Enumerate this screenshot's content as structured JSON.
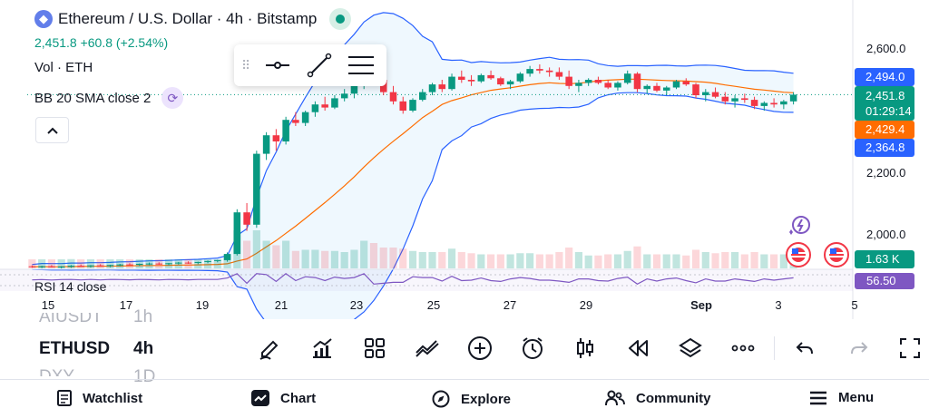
{
  "header": {
    "title": "Ethereum / U.S. Dollar · 4h · Bitstamp",
    "logo_icon": "ethereum-icon",
    "price_change": "2,451.8  +60.8 (+2.54%)",
    "volume_label": "Vol · ETH",
    "bb_label": "BB 20 SMA close 2"
  },
  "colors": {
    "up": "#089981",
    "down": "#f23645",
    "bb_band": "#2962ff",
    "bb_basis": "#ff6d00",
    "rsi": "#7e57c2",
    "accent": "#2962ff"
  },
  "price_axis": {
    "ticks": [
      "2,600.0",
      "2,200.0",
      "2,000.0"
    ],
    "labels": {
      "bb_upper": "2,494.0",
      "last": "2,451.8",
      "countdown": "01:29:14",
      "bb_basis": "2,429.4",
      "bb_lower": "2,364.8"
    },
    "volume_value": "1.63 K",
    "rsi_value": "56.50"
  },
  "time_axis": {
    "ticks": [
      "15",
      "17",
      "19",
      "21",
      "23",
      "25",
      "27",
      "29",
      "Sep",
      "3",
      "5"
    ]
  },
  "rsi": {
    "label": "RSI 14 close"
  },
  "chart_data": {
    "type": "candlestick",
    "title": "Ethereum / U.S. Dollar · 4h · Bitstamp",
    "ylim": [
      1850,
      2650
    ],
    "y_ticks": [
      2000,
      2200,
      2600
    ],
    "last_price": 2451.8,
    "change": 60.8,
    "change_pct": 2.54,
    "bollinger": {
      "upper": 2494.0,
      "basis": 2429.4,
      "lower": 2364.8
    },
    "volume_last": "1.63 K",
    "rsi_last": 56.5,
    "x_ticks": [
      "15",
      "17",
      "19",
      "21",
      "23",
      "25",
      "27",
      "29",
      "Sep",
      "3",
      "5"
    ],
    "candles": [
      [
        1895,
        1898,
        1890,
        1893
      ],
      [
        1893,
        1897,
        1889,
        1895
      ],
      [
        1895,
        1899,
        1891,
        1892
      ],
      [
        1892,
        1896,
        1888,
        1894
      ],
      [
        1894,
        1899,
        1890,
        1897
      ],
      [
        1897,
        1901,
        1893,
        1895
      ],
      [
        1895,
        1899,
        1891,
        1898
      ],
      [
        1898,
        1902,
        1894,
        1896
      ],
      [
        1896,
        1900,
        1892,
        1899
      ],
      [
        1899,
        1903,
        1895,
        1901
      ],
      [
        1901,
        1905,
        1897,
        1900
      ],
      [
        1900,
        1904,
        1896,
        1903
      ],
      [
        1903,
        1907,
        1899,
        1904
      ],
      [
        1904,
        1908,
        1900,
        1902
      ],
      [
        1902,
        1906,
        1898,
        1905
      ],
      [
        1905,
        1909,
        1901,
        1907
      ],
      [
        1907,
        1911,
        1903,
        1906
      ],
      [
        1906,
        1910,
        1902,
        1909
      ],
      [
        1909,
        1914,
        1905,
        1912
      ],
      [
        1912,
        1916,
        1908,
        1915
      ],
      [
        1915,
        1940,
        1910,
        1935
      ],
      [
        1935,
        2080,
        1930,
        2070
      ],
      [
        2070,
        2100,
        2010,
        2030
      ],
      [
        2030,
        2270,
        2020,
        2260
      ],
      [
        2260,
        2330,
        2240,
        2320
      ],
      [
        2320,
        2340,
        2270,
        2300
      ],
      [
        2300,
        2380,
        2290,
        2370
      ],
      [
        2370,
        2395,
        2350,
        2360
      ],
      [
        2360,
        2400,
        2350,
        2395
      ],
      [
        2395,
        2430,
        2380,
        2420
      ],
      [
        2420,
        2445,
        2400,
        2410
      ],
      [
        2410,
        2450,
        2405,
        2440
      ],
      [
        2440,
        2470,
        2430,
        2455
      ],
      [
        2455,
        2490,
        2440,
        2480
      ],
      [
        2480,
        2560,
        2470,
        2550
      ],
      [
        2550,
        2570,
        2490,
        2500
      ],
      [
        2500,
        2510,
        2450,
        2460
      ],
      [
        2460,
        2480,
        2420,
        2430
      ],
      [
        2430,
        2445,
        2390,
        2400
      ],
      [
        2400,
        2440,
        2395,
        2435
      ],
      [
        2435,
        2470,
        2430,
        2460
      ],
      [
        2460,
        2490,
        2450,
        2485
      ],
      [
        2485,
        2500,
        2460,
        2470
      ],
      [
        2470,
        2520,
        2465,
        2510
      ],
      [
        2510,
        2530,
        2490,
        2500
      ],
      [
        2500,
        2515,
        2480,
        2495
      ],
      [
        2495,
        2520,
        2490,
        2515
      ],
      [
        2515,
        2530,
        2500,
        2505
      ],
      [
        2505,
        2510,
        2480,
        2485
      ],
      [
        2485,
        2500,
        2470,
        2495
      ],
      [
        2495,
        2525,
        2490,
        2520
      ],
      [
        2520,
        2545,
        2510,
        2535
      ],
      [
        2535,
        2550,
        2520,
        2530
      ],
      [
        2530,
        2540,
        2510,
        2525
      ],
      [
        2525,
        2540,
        2500,
        2510
      ],
      [
        2510,
        2530,
        2470,
        2480
      ],
      [
        2480,
        2500,
        2460,
        2490
      ],
      [
        2490,
        2505,
        2480,
        2500
      ],
      [
        2500,
        2510,
        2485,
        2490
      ],
      [
        2490,
        2500,
        2470,
        2475
      ],
      [
        2475,
        2495,
        2465,
        2490
      ],
      [
        2490,
        2530,
        2485,
        2520
      ],
      [
        2520,
        2525,
        2460,
        2470
      ],
      [
        2470,
        2485,
        2455,
        2480
      ],
      [
        2480,
        2490,
        2460,
        2465
      ],
      [
        2465,
        2480,
        2450,
        2475
      ],
      [
        2475,
        2500,
        2470,
        2495
      ],
      [
        2495,
        2505,
        2480,
        2485
      ],
      [
        2485,
        2490,
        2440,
        2450
      ],
      [
        2450,
        2470,
        2430,
        2460
      ],
      [
        2460,
        2475,
        2440,
        2445
      ],
      [
        2445,
        2460,
        2420,
        2430
      ],
      [
        2430,
        2450,
        2410,
        2440
      ],
      [
        2440,
        2455,
        2425,
        2435
      ],
      [
        2435,
        2445,
        2405,
        2415
      ],
      [
        2415,
        2430,
        2400,
        2425
      ],
      [
        2425,
        2440,
        2410,
        2420
      ],
      [
        2420,
        2435,
        2405,
        2430
      ],
      [
        2430,
        2460,
        2420,
        2451.8
      ]
    ]
  },
  "symbols": [
    {
      "name": "AIUSDT",
      "tf": "1h",
      "state": "faded"
    },
    {
      "name": "ETHUSD",
      "tf": "4h",
      "state": "active"
    },
    {
      "name": "DXY",
      "tf": "1D",
      "state": "faded"
    }
  ],
  "toolbar": {
    "icons": [
      "pencil-icon",
      "indicators-icon",
      "grid-icon",
      "compare-icon",
      "add-icon",
      "alarm-icon",
      "candles-icon",
      "replay-icon",
      "layers-icon",
      "more-icon",
      "undo-icon",
      "redo-icon",
      "fullscreen-icon"
    ]
  },
  "nav": {
    "items": [
      {
        "label": "Watchlist",
        "icon": "watchlist-icon"
      },
      {
        "label": "Chart",
        "icon": "chart-icon"
      },
      {
        "label": "Explore",
        "icon": "compass-icon"
      },
      {
        "label": "Community",
        "icon": "community-icon"
      },
      {
        "label": "Menu",
        "icon": "menu-icon"
      }
    ]
  }
}
